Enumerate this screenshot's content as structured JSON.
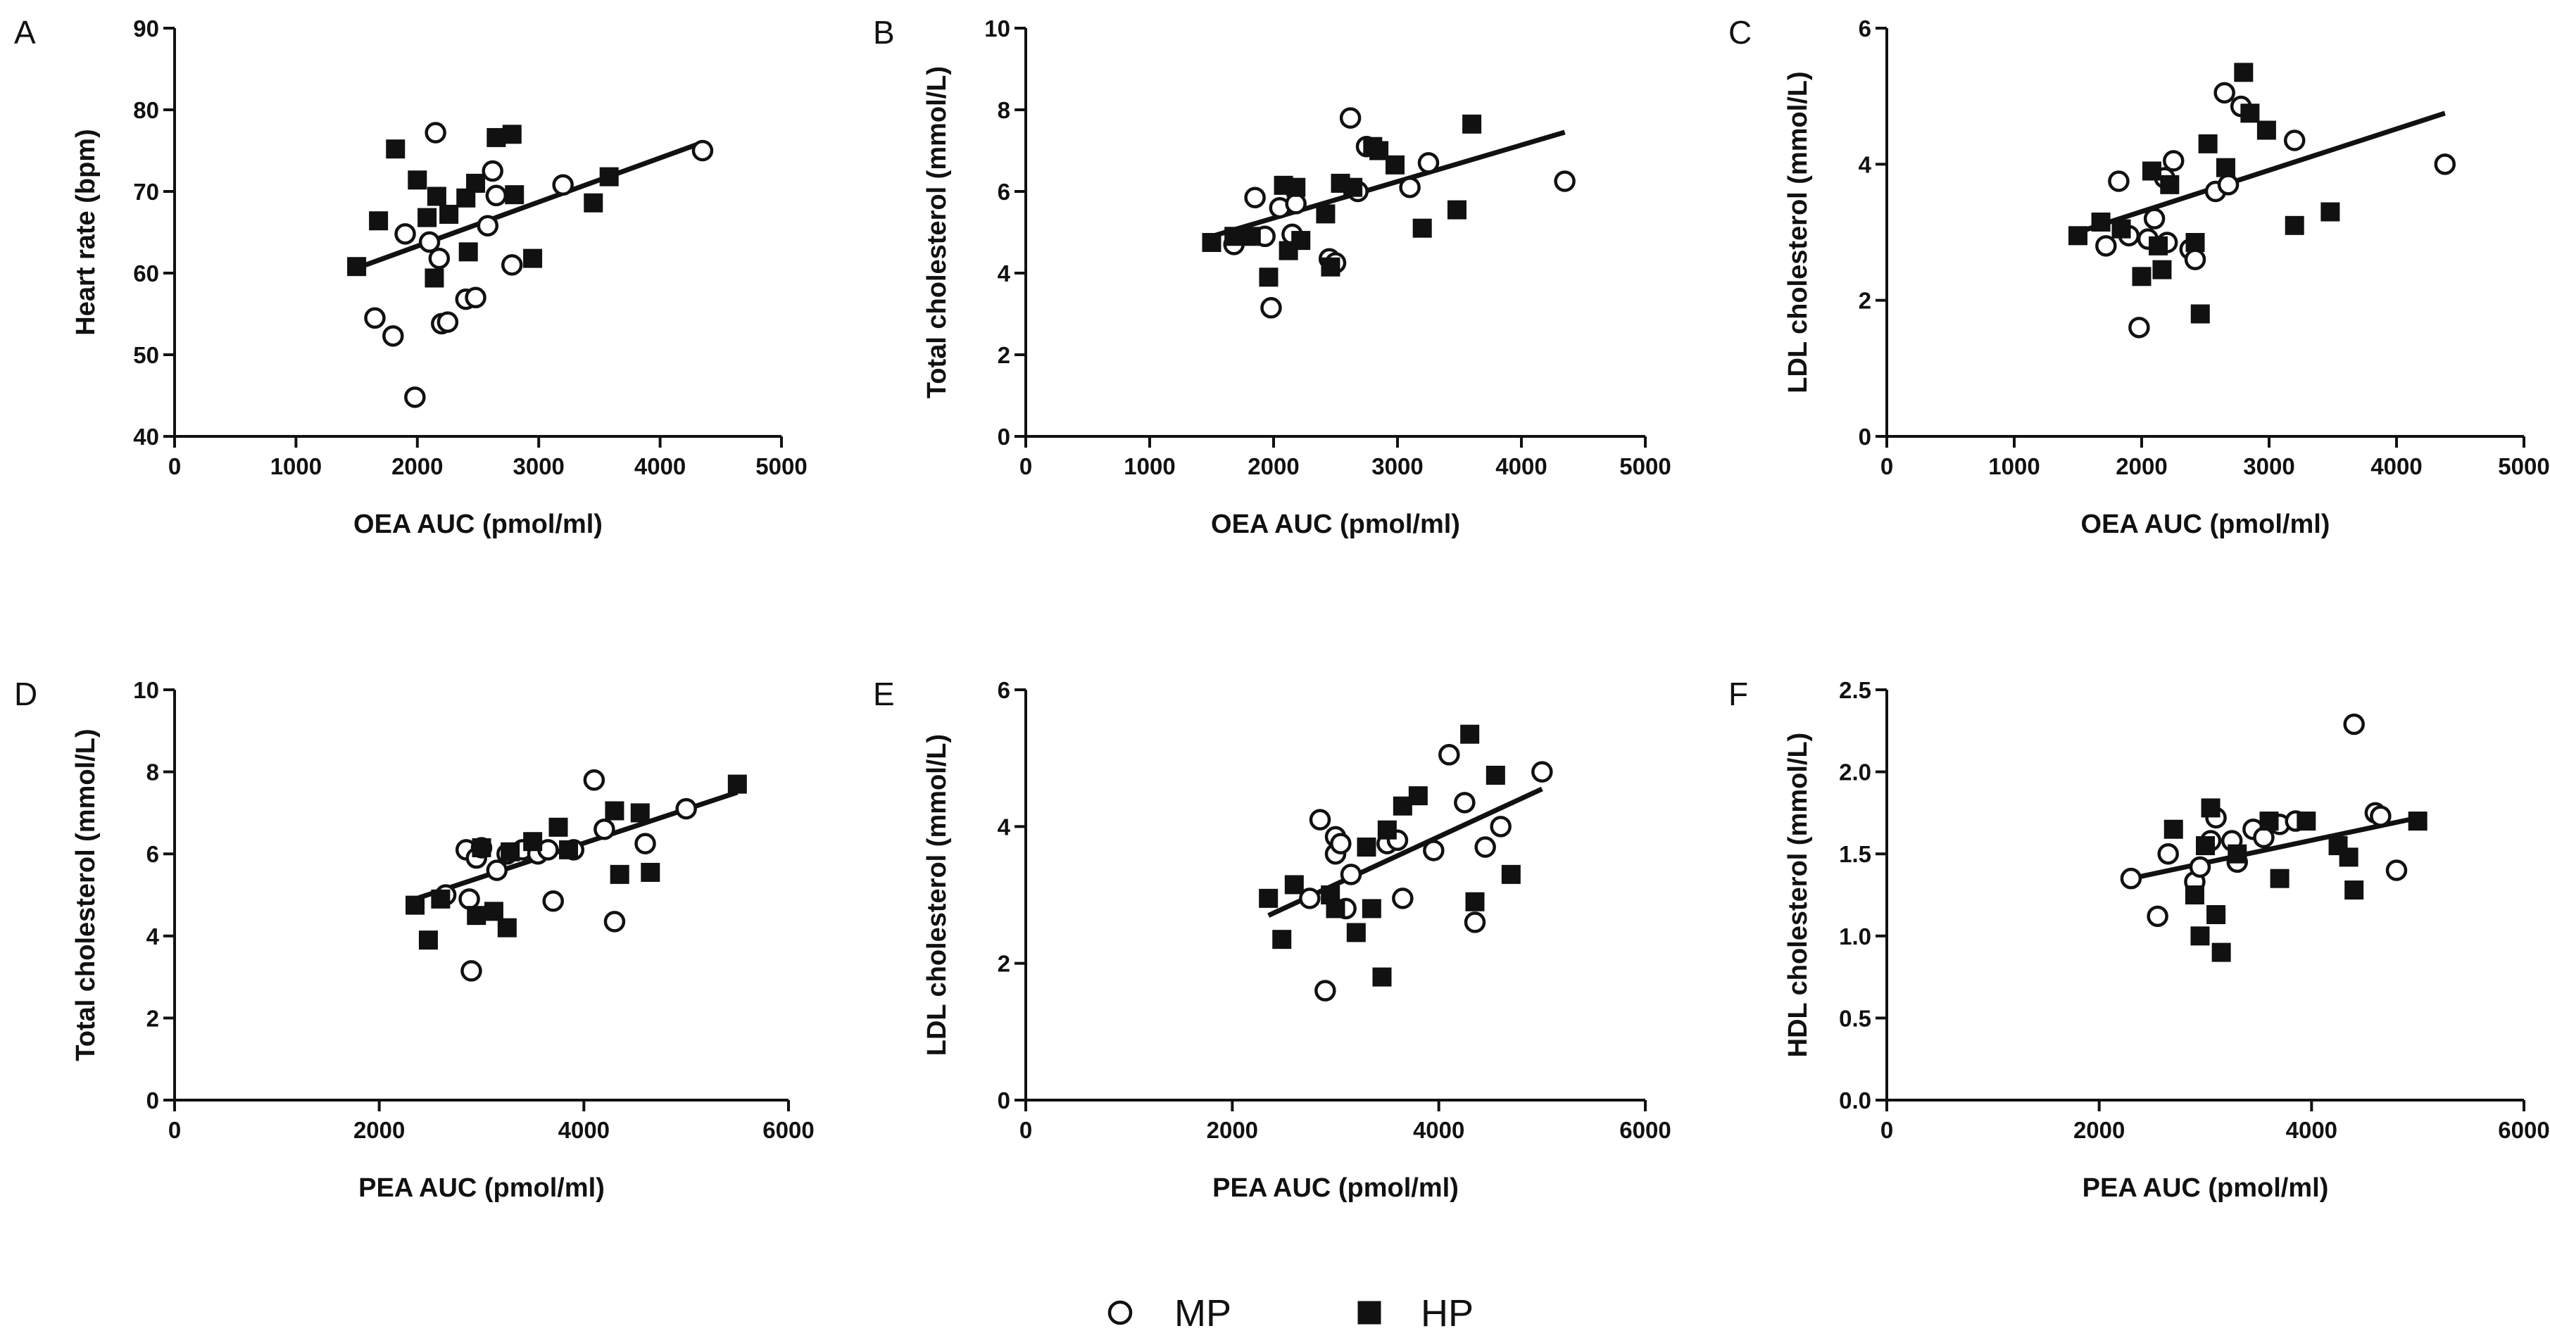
{
  "legend": {
    "items": [
      {
        "label": "MP",
        "marker": "open-circle"
      },
      {
        "label": "HP",
        "marker": "filled-square"
      }
    ]
  },
  "chart_data": [
    {
      "panel": "A",
      "type": "scatter",
      "xlabel": "OEA AUC (pmol/ml)",
      "ylabel": "Heart rate (bpm)",
      "xlim": [
        0,
        5000
      ],
      "ylim": [
        40,
        90
      ],
      "xticks": [
        0,
        1000,
        2000,
        3000,
        4000,
        5000
      ],
      "yticks": [
        40,
        50,
        60,
        70,
        80,
        90
      ],
      "series": [
        {
          "name": "MP",
          "points": [
            [
              1650,
              54.5
            ],
            [
              1800,
              52.3
            ],
            [
              1900,
              64.8
            ],
            [
              1980,
              44.8
            ],
            [
              2100,
              63.8
            ],
            [
              2150,
              77.2
            ],
            [
              2180,
              61.8
            ],
            [
              2200,
              53.8
            ],
            [
              2250,
              54.0
            ],
            [
              2400,
              56.8
            ],
            [
              2480,
              57.0
            ],
            [
              2580,
              65.8
            ],
            [
              2620,
              72.5
            ],
            [
              2650,
              69.5
            ],
            [
              2780,
              61.0
            ],
            [
              3200,
              70.8
            ],
            [
              4350,
              75.0
            ]
          ]
        },
        {
          "name": "HP",
          "points": [
            [
              1500,
              60.8
            ],
            [
              1680,
              66.4
            ],
            [
              1820,
              75.2
            ],
            [
              2000,
              71.4
            ],
            [
              2080,
              66.8
            ],
            [
              2140,
              59.4
            ],
            [
              2160,
              69.4
            ],
            [
              2260,
              67.2
            ],
            [
              2400,
              69.2
            ],
            [
              2420,
              62.6
            ],
            [
              2480,
              71.0
            ],
            [
              2650,
              76.6
            ],
            [
              2780,
              77.0
            ],
            [
              2800,
              69.6
            ],
            [
              2950,
              61.8
            ],
            [
              3450,
              68.6
            ],
            [
              3580,
              71.8
            ]
          ]
        }
      ],
      "fit": [
        [
          1500,
          60.6
        ],
        [
          4350,
          76.0
        ]
      ]
    },
    {
      "panel": "B",
      "type": "scatter",
      "xlabel": "OEA AUC (pmol/ml)",
      "ylabel": "Total cholesterol (mmol/L)",
      "xlim": [
        0,
        5000
      ],
      "ylim": [
        0,
        10
      ],
      "xticks": [
        0,
        1000,
        2000,
        3000,
        4000,
        5000
      ],
      "yticks": [
        0,
        2,
        4,
        6,
        8,
        10
      ],
      "series": [
        {
          "name": "MP",
          "points": [
            [
              1680,
              4.7
            ],
            [
              1850,
              5.85
            ],
            [
              1930,
              4.9
            ],
            [
              1980,
              3.15
            ],
            [
              2050,
              5.6
            ],
            [
              2150,
              4.95
            ],
            [
              2180,
              5.7
            ],
            [
              2450,
              4.35
            ],
            [
              2500,
              4.25
            ],
            [
              2620,
              7.8
            ],
            [
              2680,
              6.0
            ],
            [
              2750,
              7.1
            ],
            [
              3100,
              6.1
            ],
            [
              3250,
              6.7
            ],
            [
              4350,
              6.25
            ]
          ]
        },
        {
          "name": "HP",
          "points": [
            [
              1500,
              4.75
            ],
            [
              1680,
              4.9
            ],
            [
              1820,
              4.9
            ],
            [
              1960,
              3.9
            ],
            [
              2080,
              6.15
            ],
            [
              2120,
              4.55
            ],
            [
              2180,
              6.1
            ],
            [
              2220,
              4.8
            ],
            [
              2420,
              5.45
            ],
            [
              2460,
              4.15
            ],
            [
              2540,
              6.2
            ],
            [
              2640,
              6.1
            ],
            [
              2800,
              7.1
            ],
            [
              2850,
              7.0
            ],
            [
              2980,
              6.65
            ],
            [
              3200,
              5.1
            ],
            [
              3480,
              5.55
            ],
            [
              3600,
              7.65
            ]
          ]
        }
      ],
      "fit": [
        [
          1500,
          4.9
        ],
        [
          4350,
          7.45
        ]
      ]
    },
    {
      "panel": "C",
      "type": "scatter",
      "xlabel": "OEA AUC (pmol/ml)",
      "ylabel": "LDL cholesterol (mmol/L)",
      "xlim": [
        0,
        5000
      ],
      "ylim": [
        0,
        6
      ],
      "xticks": [
        0,
        1000,
        2000,
        3000,
        4000,
        5000
      ],
      "yticks": [
        0,
        2,
        4,
        6
      ],
      "series": [
        {
          "name": "MP",
          "points": [
            [
              1720,
              2.8
            ],
            [
              1820,
              3.75
            ],
            [
              1900,
              2.95
            ],
            [
              1980,
              1.6
            ],
            [
              2050,
              2.9
            ],
            [
              2100,
              3.2
            ],
            [
              2180,
              3.8
            ],
            [
              2200,
              2.85
            ],
            [
              2250,
              4.05
            ],
            [
              2380,
              2.75
            ],
            [
              2420,
              2.6
            ],
            [
              2580,
              3.6
            ],
            [
              2650,
              5.05
            ],
            [
              2680,
              3.7
            ],
            [
              2780,
              4.85
            ],
            [
              3200,
              4.35
            ],
            [
              4380,
              4.0
            ]
          ]
        },
        {
          "name": "HP",
          "points": [
            [
              1500,
              2.95
            ],
            [
              1680,
              3.15
            ],
            [
              1840,
              3.05
            ],
            [
              2000,
              2.35
            ],
            [
              2080,
              3.9
            ],
            [
              2130,
              2.8
            ],
            [
              2160,
              2.45
            ],
            [
              2220,
              3.7
            ],
            [
              2420,
              2.85
            ],
            [
              2460,
              1.8
            ],
            [
              2520,
              4.3
            ],
            [
              2660,
              3.95
            ],
            [
              2800,
              5.35
            ],
            [
              2850,
              4.75
            ],
            [
              2980,
              4.5
            ],
            [
              3200,
              3.1
            ],
            [
              3480,
              3.3
            ]
          ]
        }
      ],
      "fit": [
        [
          1500,
          3.0
        ],
        [
          4380,
          4.75
        ]
      ]
    },
    {
      "panel": "D",
      "type": "scatter",
      "xlabel": "PEA AUC (pmol/ml)",
      "ylabel": "Total cholesterol (mmol/L)",
      "xlim": [
        0,
        6000
      ],
      "ylim": [
        0,
        10
      ],
      "xticks": [
        0,
        2000,
        4000,
        6000
      ],
      "yticks": [
        0,
        2,
        4,
        6,
        8,
        10
      ],
      "series": [
        {
          "name": "MP",
          "points": [
            [
              2650,
              5.0
            ],
            [
              2850,
              6.1
            ],
            [
              2880,
              4.9
            ],
            [
              2900,
              3.15
            ],
            [
              2950,
              5.9
            ],
            [
              3000,
              6.15
            ],
            [
              3150,
              5.6
            ],
            [
              3250,
              6.0
            ],
            [
              3400,
              6.1
            ],
            [
              3550,
              6.0
            ],
            [
              3650,
              6.1
            ],
            [
              3700,
              4.85
            ],
            [
              3900,
              6.1
            ],
            [
              4100,
              7.8
            ],
            [
              4200,
              6.6
            ],
            [
              4300,
              4.35
            ],
            [
              4600,
              6.25
            ],
            [
              5000,
              7.1
            ]
          ]
        },
        {
          "name": "HP",
          "points": [
            [
              2350,
              4.75
            ],
            [
              2480,
              3.9
            ],
            [
              2600,
              4.9
            ],
            [
              2950,
              4.5
            ],
            [
              3000,
              6.15
            ],
            [
              3120,
              4.6
            ],
            [
              3250,
              4.2
            ],
            [
              3280,
              6.05
            ],
            [
              3500,
              6.3
            ],
            [
              3750,
              6.65
            ],
            [
              3850,
              6.1
            ],
            [
              4300,
              7.05
            ],
            [
              4350,
              5.5
            ],
            [
              4550,
              7.0
            ],
            [
              4650,
              5.55
            ],
            [
              5500,
              7.7
            ]
          ]
        }
      ],
      "fit": [
        [
          2350,
          4.9
        ],
        [
          5500,
          7.5
        ]
      ]
    },
    {
      "panel": "E",
      "type": "scatter",
      "xlabel": "PEA AUC (pmol/ml)",
      "ylabel": "LDL cholesterol (mmol/L)",
      "xlim": [
        0,
        6000
      ],
      "ylim": [
        0,
        6
      ],
      "xticks": [
        0,
        2000,
        4000,
        6000
      ],
      "yticks": [
        0,
        2,
        4,
        6
      ],
      "series": [
        {
          "name": "MP",
          "points": [
            [
              2750,
              2.95
            ],
            [
              2850,
              4.1
            ],
            [
              2900,
              1.6
            ],
            [
              3000,
              3.6
            ],
            [
              3000,
              3.85
            ],
            [
              3050,
              3.75
            ],
            [
              3100,
              2.8
            ],
            [
              3150,
              3.3
            ],
            [
              3500,
              3.75
            ],
            [
              3600,
              3.8
            ],
            [
              3650,
              2.95
            ],
            [
              3950,
              3.65
            ],
            [
              4100,
              5.05
            ],
            [
              4250,
              4.35
            ],
            [
              4350,
              2.6
            ],
            [
              4450,
              3.7
            ],
            [
              4600,
              4.0
            ],
            [
              5000,
              4.8
            ]
          ]
        },
        {
          "name": "HP",
          "points": [
            [
              2350,
              2.95
            ],
            [
              2480,
              2.35
            ],
            [
              2600,
              3.15
            ],
            [
              2950,
              3.0
            ],
            [
              3000,
              2.8
            ],
            [
              3200,
              2.45
            ],
            [
              3300,
              3.7
            ],
            [
              3350,
              2.8
            ],
            [
              3450,
              1.8
            ],
            [
              3500,
              3.95
            ],
            [
              3650,
              4.3
            ],
            [
              3800,
              4.45
            ],
            [
              4300,
              5.35
            ],
            [
              4350,
              2.9
            ],
            [
              4550,
              4.75
            ],
            [
              4700,
              3.3
            ]
          ]
        }
      ],
      "fit": [
        [
          2350,
          2.7
        ],
        [
          5000,
          4.55
        ]
      ]
    },
    {
      "panel": "F",
      "type": "scatter",
      "xlabel": "PEA AUC (pmol/ml)",
      "ylabel": "HDL cholesterol (mmol/L)",
      "xlim": [
        0,
        6000
      ],
      "ylim": [
        0.0,
        2.5
      ],
      "xticks": [
        0,
        2000,
        4000,
        6000
      ],
      "yticks": [
        0.0,
        0.5,
        1.0,
        1.5,
        2.0,
        2.5
      ],
      "series": [
        {
          "name": "MP",
          "points": [
            [
              2300,
              1.35
            ],
            [
              2550,
              1.12
            ],
            [
              2650,
              1.5
            ],
            [
              2900,
              1.33
            ],
            [
              2950,
              1.42
            ],
            [
              3050,
              1.58
            ],
            [
              3100,
              1.72
            ],
            [
              3250,
              1.58
            ],
            [
              3300,
              1.45
            ],
            [
              3450,
              1.65
            ],
            [
              3550,
              1.6
            ],
            [
              3700,
              1.68
            ],
            [
              3850,
              1.7
            ],
            [
              4400,
              2.29
            ],
            [
              4600,
              1.75
            ],
            [
              4650,
              1.73
            ],
            [
              4800,
              1.4
            ]
          ]
        },
        {
          "name": "HP",
          "points": [
            [
              2700,
              1.65
            ],
            [
              2900,
              1.25
            ],
            [
              2950,
              1.0
            ],
            [
              3000,
              1.55
            ],
            [
              3050,
              1.78
            ],
            [
              3100,
              1.13
            ],
            [
              3150,
              0.9
            ],
            [
              3300,
              1.5
            ],
            [
              3600,
              1.7
            ],
            [
              3700,
              1.35
            ],
            [
              3950,
              1.7
            ],
            [
              4250,
              1.55
            ],
            [
              4350,
              1.48
            ],
            [
              4400,
              1.28
            ],
            [
              5000,
              1.7
            ]
          ]
        }
      ],
      "fit": [
        [
          2300,
          1.35
        ],
        [
          5000,
          1.72
        ]
      ]
    }
  ]
}
